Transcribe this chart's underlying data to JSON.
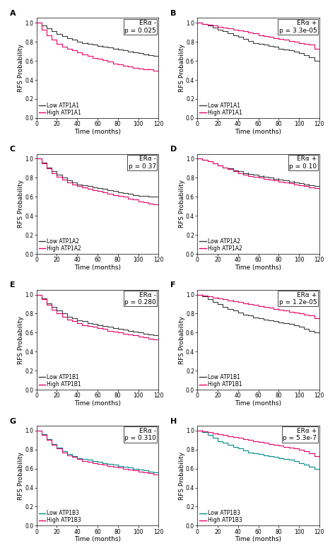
{
  "panels": [
    {
      "label": "A",
      "title": "ERα -",
      "pval": "p = 0.025",
      "gene": "ATP1A1",
      "low_color": "#3a3a3a",
      "high_color": "#e8006a",
      "low_curve_y": [
        1.0,
        0.97,
        0.94,
        0.91,
        0.88,
        0.86,
        0.84,
        0.82,
        0.8,
        0.79,
        0.78,
        0.77,
        0.76,
        0.75,
        0.74,
        0.73,
        0.72,
        0.71,
        0.7,
        0.69,
        0.68,
        0.67,
        0.66,
        0.65,
        0.64
      ],
      "high_curve_y": [
        1.0,
        0.93,
        0.87,
        0.82,
        0.78,
        0.75,
        0.73,
        0.71,
        0.69,
        0.67,
        0.65,
        0.63,
        0.62,
        0.61,
        0.59,
        0.57,
        0.56,
        0.55,
        0.54,
        0.53,
        0.52,
        0.51,
        0.51,
        0.5,
        0.5
      ]
    },
    {
      "label": "B",
      "title": "ERα +",
      "pval": "p = 3.3e-05",
      "gene": "ATP1A1",
      "low_color": "#3a3a3a",
      "high_color": "#e8006a",
      "low_curve_y": [
        1.0,
        0.99,
        0.97,
        0.95,
        0.93,
        0.91,
        0.89,
        0.87,
        0.85,
        0.83,
        0.81,
        0.79,
        0.78,
        0.77,
        0.76,
        0.75,
        0.73,
        0.72,
        0.71,
        0.7,
        0.68,
        0.66,
        0.64,
        0.6,
        0.57
      ],
      "high_curve_y": [
        1.0,
        0.99,
        0.98,
        0.97,
        0.96,
        0.95,
        0.94,
        0.93,
        0.92,
        0.91,
        0.9,
        0.89,
        0.87,
        0.86,
        0.85,
        0.84,
        0.83,
        0.82,
        0.81,
        0.8,
        0.79,
        0.78,
        0.77,
        0.73,
        0.65
      ]
    },
    {
      "label": "C",
      "title": "ERα -",
      "pval": "p = 0.37",
      "gene": "ATP1A2",
      "low_color": "#3a3a3a",
      "high_color": "#e8006a",
      "low_curve_y": [
        1.0,
        0.96,
        0.91,
        0.87,
        0.83,
        0.8,
        0.77,
        0.75,
        0.73,
        0.72,
        0.71,
        0.7,
        0.69,
        0.68,
        0.67,
        0.66,
        0.65,
        0.64,
        0.63,
        0.62,
        0.61,
        0.61,
        0.6,
        0.6,
        0.6
      ],
      "high_curve_y": [
        1.0,
        0.95,
        0.9,
        0.85,
        0.81,
        0.78,
        0.75,
        0.73,
        0.71,
        0.7,
        0.68,
        0.67,
        0.66,
        0.65,
        0.63,
        0.62,
        0.61,
        0.6,
        0.58,
        0.57,
        0.55,
        0.54,
        0.53,
        0.52,
        0.51
      ]
    },
    {
      "label": "D",
      "title": "ERα +",
      "pval": "p = 0.10",
      "gene": "ATP1A2",
      "low_color": "#3a3a3a",
      "high_color": "#e8006a",
      "low_curve_y": [
        1.0,
        0.99,
        0.97,
        0.95,
        0.93,
        0.91,
        0.9,
        0.88,
        0.87,
        0.85,
        0.84,
        0.83,
        0.82,
        0.81,
        0.8,
        0.79,
        0.78,
        0.77,
        0.76,
        0.75,
        0.74,
        0.73,
        0.72,
        0.71,
        0.7
      ],
      "high_curve_y": [
        1.0,
        0.99,
        0.97,
        0.95,
        0.93,
        0.91,
        0.89,
        0.87,
        0.85,
        0.83,
        0.82,
        0.81,
        0.8,
        0.79,
        0.78,
        0.77,
        0.76,
        0.75,
        0.74,
        0.73,
        0.72,
        0.71,
        0.7,
        0.69,
        0.68
      ]
    },
    {
      "label": "E",
      "title": "ERα -",
      "pval": "p = 0.280",
      "gene": "ATP1B1",
      "low_color": "#3a3a3a",
      "high_color": "#e8006a",
      "low_curve_y": [
        1.0,
        0.96,
        0.91,
        0.87,
        0.83,
        0.8,
        0.77,
        0.75,
        0.73,
        0.72,
        0.7,
        0.69,
        0.68,
        0.67,
        0.66,
        0.65,
        0.64,
        0.63,
        0.62,
        0.61,
        0.6,
        0.59,
        0.58,
        0.57,
        0.57
      ],
      "high_curve_y": [
        1.0,
        0.95,
        0.89,
        0.84,
        0.8,
        0.77,
        0.74,
        0.72,
        0.7,
        0.68,
        0.67,
        0.66,
        0.65,
        0.64,
        0.62,
        0.61,
        0.6,
        0.59,
        0.58,
        0.57,
        0.56,
        0.55,
        0.54,
        0.53,
        0.52
      ]
    },
    {
      "label": "F",
      "title": "ERα +",
      "pval": "p = 1.2e-05",
      "gene": "ATP1B1",
      "low_color": "#3a3a3a",
      "high_color": "#e8006a",
      "low_curve_y": [
        1.0,
        0.98,
        0.95,
        0.92,
        0.9,
        0.87,
        0.85,
        0.83,
        0.81,
        0.79,
        0.78,
        0.76,
        0.75,
        0.74,
        0.73,
        0.72,
        0.71,
        0.7,
        0.69,
        0.68,
        0.66,
        0.64,
        0.62,
        0.6,
        0.58
      ],
      "high_curve_y": [
        1.0,
        0.99,
        0.98,
        0.97,
        0.96,
        0.95,
        0.94,
        0.93,
        0.92,
        0.91,
        0.9,
        0.89,
        0.88,
        0.87,
        0.86,
        0.85,
        0.84,
        0.83,
        0.82,
        0.81,
        0.8,
        0.79,
        0.78,
        0.75,
        0.72
      ]
    },
    {
      "label": "G",
      "title": "ERα -",
      "pval": "p = 0.310",
      "gene": "ATP1B3",
      "low_color": "#008b8b",
      "high_color": "#e8006a",
      "low_curve_y": [
        1.0,
        0.96,
        0.91,
        0.86,
        0.82,
        0.78,
        0.75,
        0.73,
        0.71,
        0.7,
        0.69,
        0.68,
        0.67,
        0.66,
        0.65,
        0.64,
        0.63,
        0.62,
        0.61,
        0.6,
        0.59,
        0.58,
        0.57,
        0.56,
        0.55
      ],
      "high_curve_y": [
        1.0,
        0.95,
        0.9,
        0.85,
        0.81,
        0.77,
        0.74,
        0.72,
        0.7,
        0.68,
        0.67,
        0.66,
        0.65,
        0.64,
        0.63,
        0.62,
        0.61,
        0.6,
        0.59,
        0.58,
        0.57,
        0.56,
        0.55,
        0.54,
        0.54
      ]
    },
    {
      "label": "H",
      "title": "ERα +",
      "pval": "p = 5.3e-7",
      "gene": "ATP1B3",
      "low_color": "#008b8b",
      "high_color": "#e8006a",
      "low_curve_y": [
        1.0,
        0.98,
        0.95,
        0.92,
        0.89,
        0.87,
        0.85,
        0.83,
        0.81,
        0.79,
        0.77,
        0.76,
        0.75,
        0.74,
        0.73,
        0.72,
        0.71,
        0.7,
        0.69,
        0.68,
        0.66,
        0.64,
        0.62,
        0.6,
        0.58
      ],
      "high_curve_y": [
        1.0,
        0.99,
        0.98,
        0.97,
        0.96,
        0.95,
        0.94,
        0.93,
        0.92,
        0.91,
        0.9,
        0.89,
        0.88,
        0.87,
        0.86,
        0.85,
        0.84,
        0.83,
        0.82,
        0.81,
        0.8,
        0.78,
        0.76,
        0.73,
        0.7
      ]
    }
  ],
  "x_pts": [
    0,
    5,
    10,
    15,
    20,
    25,
    30,
    35,
    40,
    45,
    50,
    55,
    60,
    65,
    70,
    75,
    80,
    85,
    90,
    95,
    100,
    105,
    110,
    115,
    120
  ],
  "ylabel": "RFS Probability",
  "xlabel": "Time (months)",
  "yticks": [
    0.0,
    0.2,
    0.4,
    0.6,
    0.8,
    1.0
  ],
  "xticks": [
    0,
    20,
    40,
    60,
    80,
    100,
    120
  ],
  "xlim": [
    0,
    120
  ],
  "ylim": [
    0.0,
    1.05
  ],
  "bg_color": "#ffffff",
  "fontsize_label": 6.5,
  "fontsize_tick": 5.5,
  "fontsize_panel": 8,
  "fontsize_legend": 5.5,
  "fontsize_annot": 6.5,
  "linewidth": 0.8
}
